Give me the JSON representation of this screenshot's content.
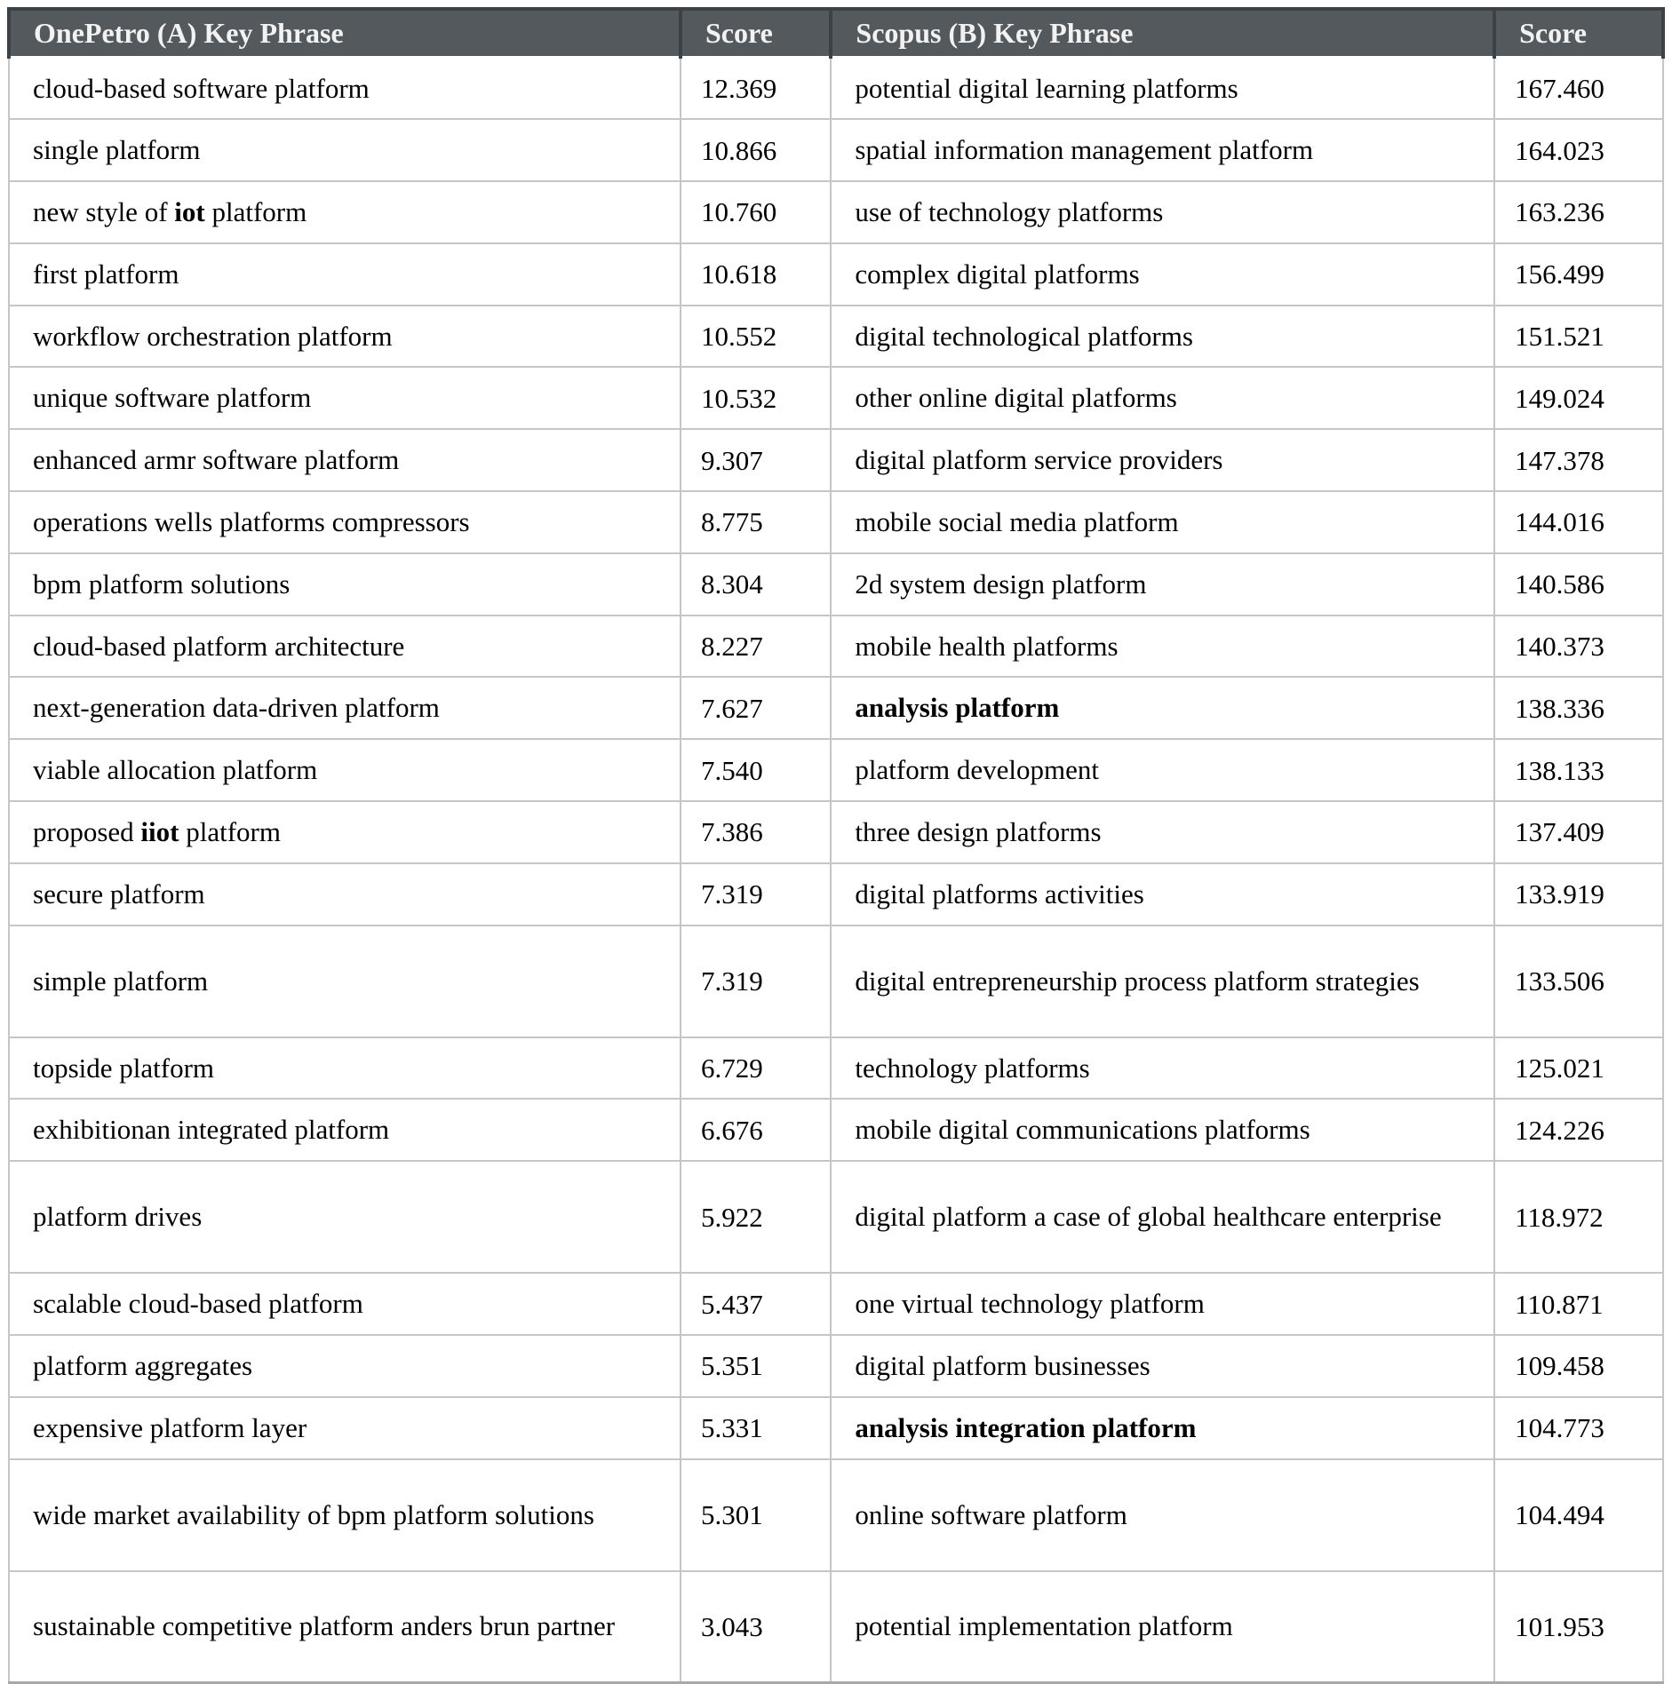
{
  "table": {
    "headers": [
      "OnePetro (A) Key Phrase",
      "Score",
      "Scopus (B) Key Phrase",
      "Score"
    ],
    "rows": [
      {
        "a_phrase": [
          {
            "t": "cloud-based software platform"
          }
        ],
        "a_score": "12.369",
        "b_phrase": [
          {
            "t": "potential digital learning platforms"
          }
        ],
        "b_score": "167.460",
        "tall": false
      },
      {
        "a_phrase": [
          {
            "t": "single platform"
          }
        ],
        "a_score": "10.866",
        "b_phrase": [
          {
            "t": "spatial information management platform"
          }
        ],
        "b_score": "164.023",
        "tall": false
      },
      {
        "a_phrase": [
          {
            "t": "new style of "
          },
          {
            "t": "iot",
            "b": true
          },
          {
            "t": " platform"
          }
        ],
        "a_score": "10.760",
        "b_phrase": [
          {
            "t": "use of technology platforms"
          }
        ],
        "b_score": "163.236",
        "tall": false
      },
      {
        "a_phrase": [
          {
            "t": "first platform"
          }
        ],
        "a_score": "10.618",
        "b_phrase": [
          {
            "t": "complex digital platforms"
          }
        ],
        "b_score": "156.499",
        "tall": false
      },
      {
        "a_phrase": [
          {
            "t": "workflow orchestration platform"
          }
        ],
        "a_score": "10.552",
        "b_phrase": [
          {
            "t": "digital technological platforms"
          }
        ],
        "b_score": "151.521",
        "tall": false
      },
      {
        "a_phrase": [
          {
            "t": "unique software platform"
          }
        ],
        "a_score": "10.532",
        "b_phrase": [
          {
            "t": "other online digital platforms"
          }
        ],
        "b_score": "149.024",
        "tall": false
      },
      {
        "a_phrase": [
          {
            "t": "enhanced armr software platform"
          }
        ],
        "a_score": "9.307",
        "b_phrase": [
          {
            "t": "digital platform service providers"
          }
        ],
        "b_score": "147.378",
        "tall": false
      },
      {
        "a_phrase": [
          {
            "t": "operations wells platforms compressors"
          }
        ],
        "a_score": "8.775",
        "b_phrase": [
          {
            "t": "mobile social media platform"
          }
        ],
        "b_score": "144.016",
        "tall": false
      },
      {
        "a_phrase": [
          {
            "t": "bpm platform solutions"
          }
        ],
        "a_score": "8.304",
        "b_phrase": [
          {
            "t": "2d system design platform"
          }
        ],
        "b_score": "140.586",
        "tall": false
      },
      {
        "a_phrase": [
          {
            "t": "cloud-based platform architecture"
          }
        ],
        "a_score": "8.227",
        "b_phrase": [
          {
            "t": "mobile health platforms"
          }
        ],
        "b_score": "140.373",
        "tall": false
      },
      {
        "a_phrase": [
          {
            "t": "next-generation data-driven platform"
          }
        ],
        "a_score": "7.627",
        "b_phrase": [
          {
            "t": "analysis platform",
            "b": true
          }
        ],
        "b_score": "138.336",
        "tall": false
      },
      {
        "a_phrase": [
          {
            "t": "viable allocation platform"
          }
        ],
        "a_score": "7.540",
        "b_phrase": [
          {
            "t": "platform development"
          }
        ],
        "b_score": "138.133",
        "tall": false
      },
      {
        "a_phrase": [
          {
            "t": "proposed "
          },
          {
            "t": "iiot",
            "b": true
          },
          {
            "t": " platform"
          }
        ],
        "a_score": "7.386",
        "b_phrase": [
          {
            "t": "three design platforms"
          }
        ],
        "b_score": "137.409",
        "tall": false
      },
      {
        "a_phrase": [
          {
            "t": "secure platform"
          }
        ],
        "a_score": "7.319",
        "b_phrase": [
          {
            "t": "digital platforms activities"
          }
        ],
        "b_score": "133.919",
        "tall": false
      },
      {
        "a_phrase": [
          {
            "t": "simple platform"
          }
        ],
        "a_score": "7.319",
        "b_phrase": [
          {
            "t": "digital entrepreneurship process platform strategies"
          }
        ],
        "b_score": "133.506",
        "tall": true
      },
      {
        "a_phrase": [
          {
            "t": "topside platform"
          }
        ],
        "a_score": "6.729",
        "b_phrase": [
          {
            "t": "technology platforms"
          }
        ],
        "b_score": "125.021",
        "tall": false
      },
      {
        "a_phrase": [
          {
            "t": "exhibitionan integrated platform"
          }
        ],
        "a_score": "6.676",
        "b_phrase": [
          {
            "t": "mobile digital communications platforms"
          }
        ],
        "b_score": "124.226",
        "tall": false
      },
      {
        "a_phrase": [
          {
            "t": "platform drives"
          }
        ],
        "a_score": "5.922",
        "b_phrase": [
          {
            "t": "digital platform a case of global healthcare enterprise"
          }
        ],
        "b_score": "118.972",
        "tall": true
      },
      {
        "a_phrase": [
          {
            "t": "scalable cloud-based platform"
          }
        ],
        "a_score": "5.437",
        "b_phrase": [
          {
            "t": "one virtual technology platform"
          }
        ],
        "b_score": "110.871",
        "tall": false
      },
      {
        "a_phrase": [
          {
            "t": "platform aggregates"
          }
        ],
        "a_score": "5.351",
        "b_phrase": [
          {
            "t": "digital platform businesses"
          }
        ],
        "b_score": "109.458",
        "tall": false
      },
      {
        "a_phrase": [
          {
            "t": "expensive platform layer"
          }
        ],
        "a_score": "5.331",
        "b_phrase": [
          {
            "t": "analysis integration platform",
            "b": true
          }
        ],
        "b_score": "104.773",
        "tall": false
      },
      {
        "a_phrase": [
          {
            "t": "wide market availability of bpm platform solutions"
          }
        ],
        "a_score": "5.301",
        "b_phrase": [
          {
            "t": "online software platform"
          }
        ],
        "b_score": "104.494",
        "tall": true
      },
      {
        "a_phrase": [
          {
            "t": "sustainable competitive platform anders brun partner"
          }
        ],
        "a_score": "3.043",
        "b_phrase": [
          {
            "t": "potential implementation platform"
          }
        ],
        "b_score": "101.953",
        "tall": true
      }
    ]
  },
  "colors": {
    "header_background": "#54595d",
    "header_text": "#f2f2f2",
    "header_border": "#3c4145",
    "body_border": "#c6c6c6",
    "body_text": "#000000"
  }
}
